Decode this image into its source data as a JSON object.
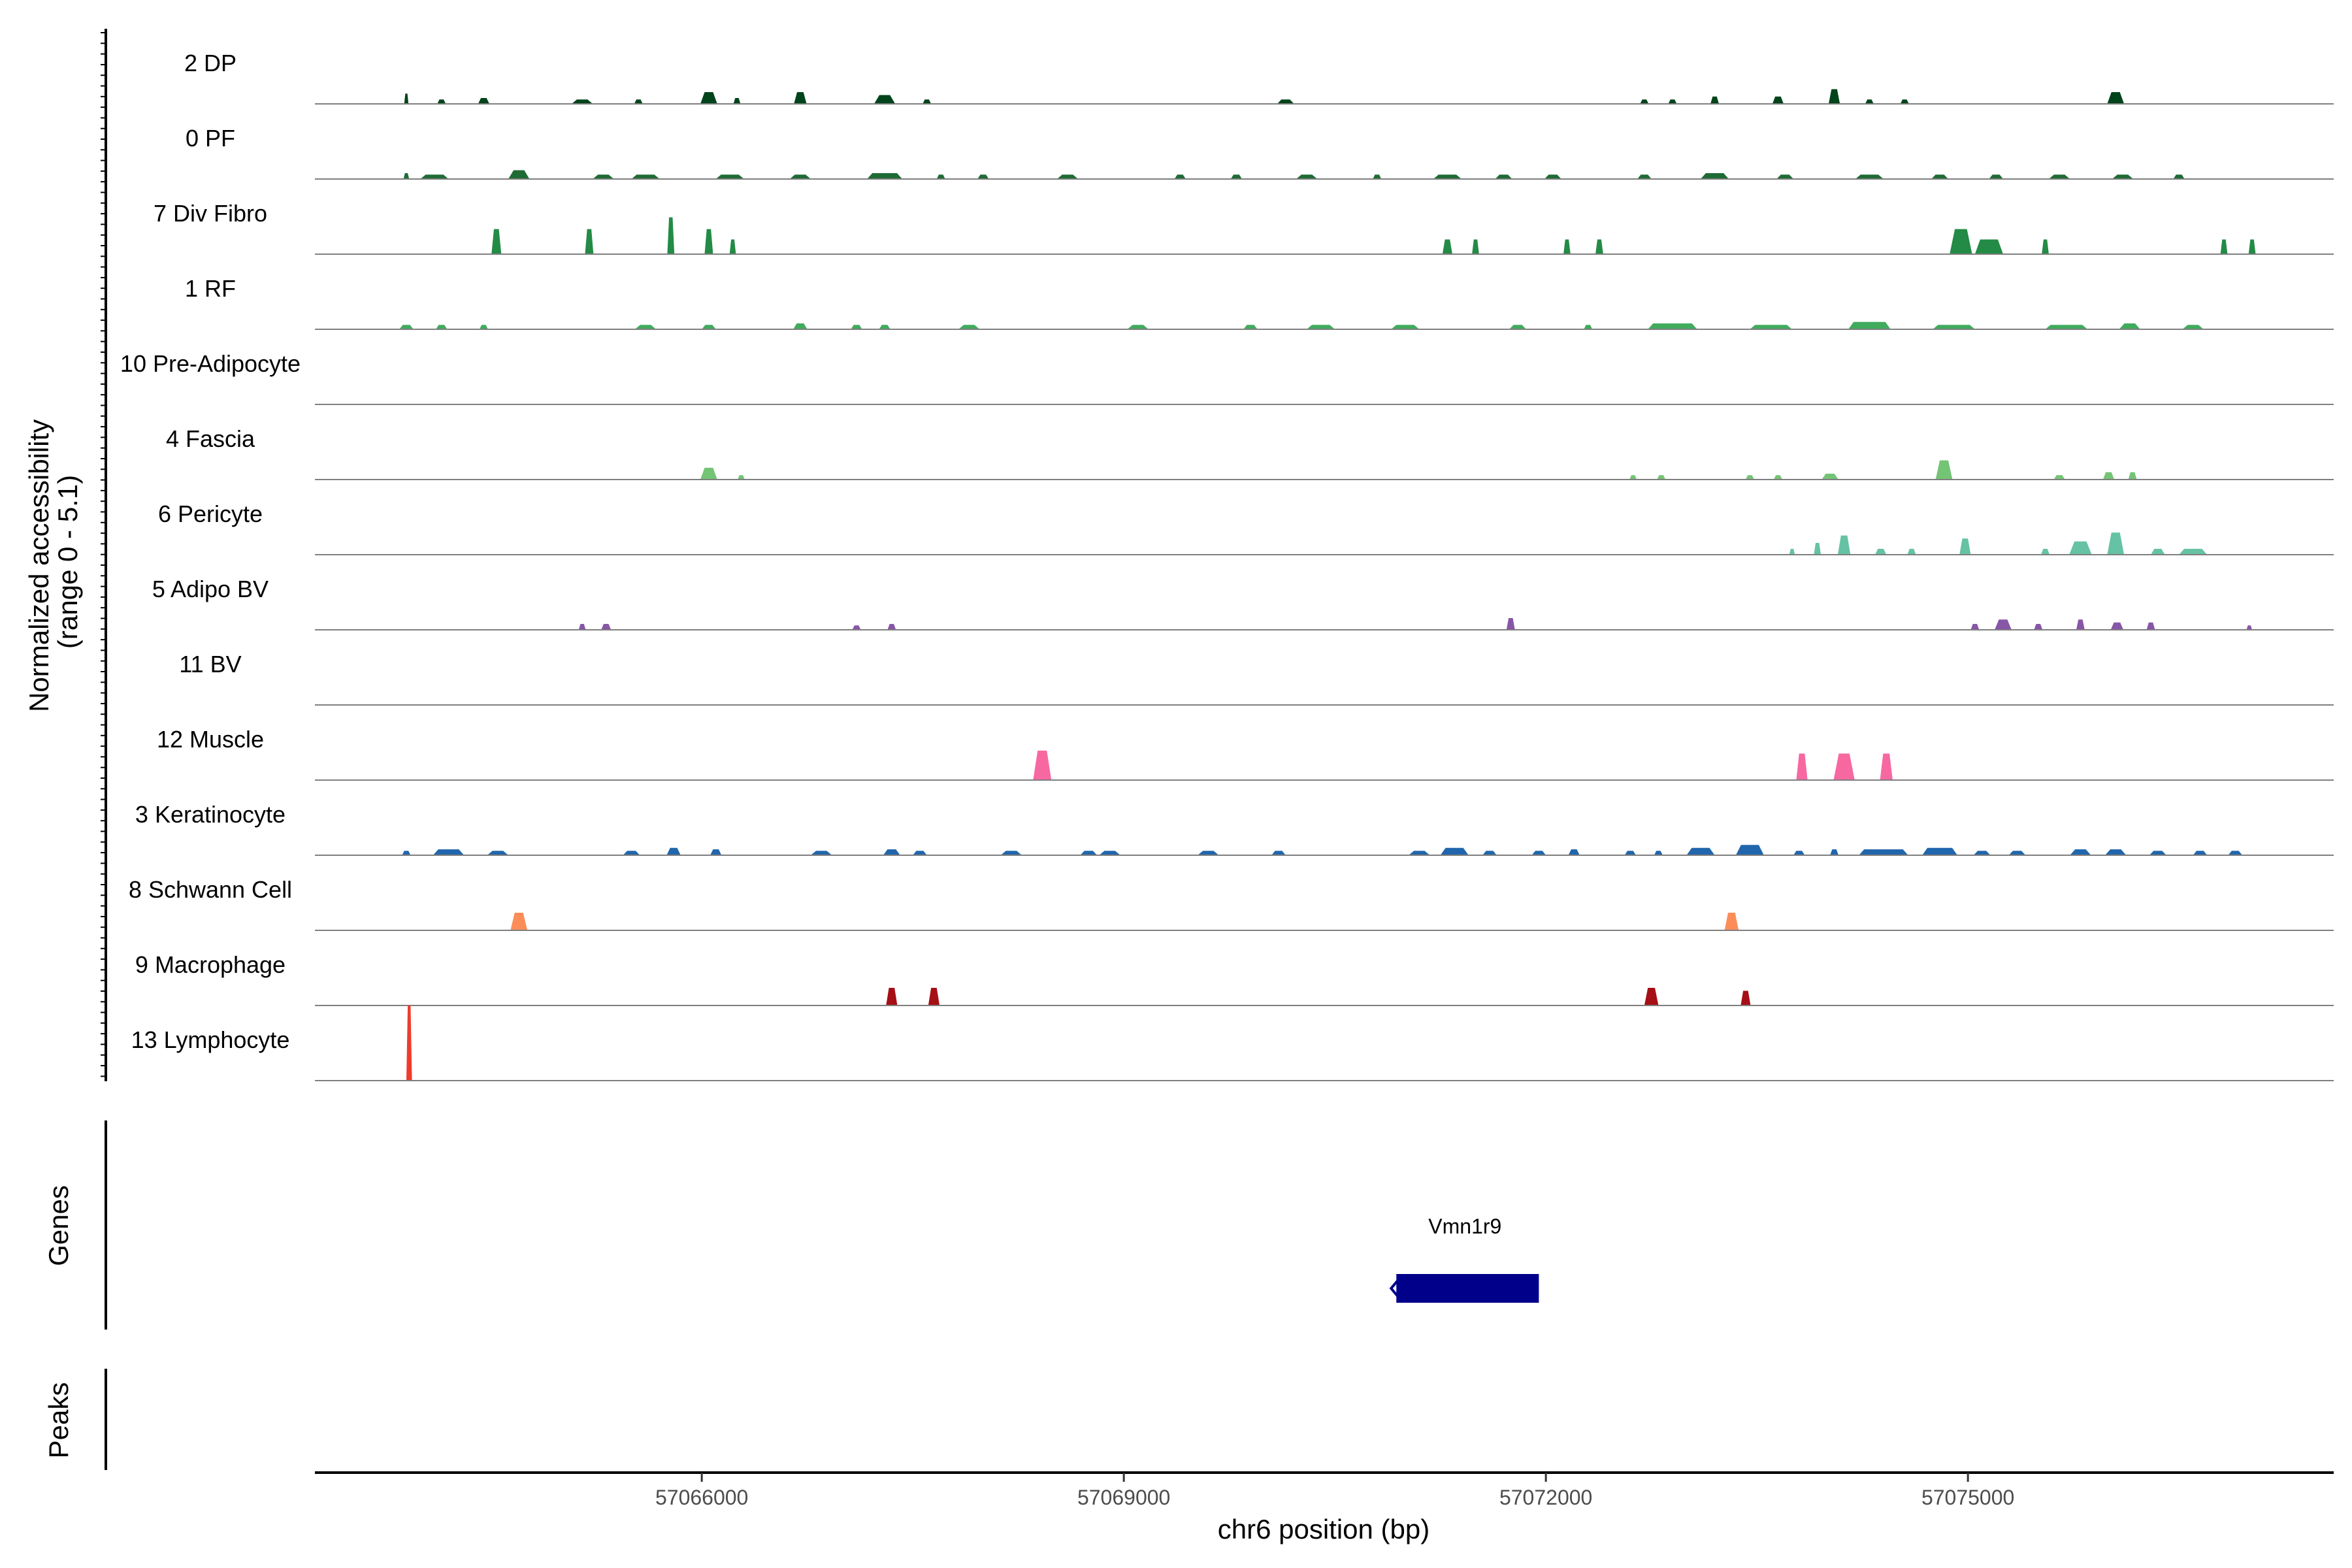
{
  "chart_data": {
    "type": "coverage-tracks",
    "xlabel": "chr6 position (bp)",
    "ylabel_line1": "Normalized accessibility",
    "ylabel_line2": "(range 0 - 5.1)",
    "xlim": [
      57063250,
      57077600
    ],
    "ylim": [
      0,
      5.1
    ],
    "x_ticks": [
      57066000,
      57069000,
      57072000,
      57075000
    ],
    "x_tick_labels": [
      "57066000",
      "57069000",
      "57072000",
      "57075000"
    ],
    "tracks": [
      {
        "name": "2 DP",
        "color": "#00441B",
        "peaks": [
          [
            57063900,
            0.7,
            30
          ],
          [
            57064150,
            0.3,
            60
          ],
          [
            57064450,
            0.4,
            80
          ],
          [
            57065150,
            0.3,
            150
          ],
          [
            57065550,
            0.3,
            60
          ],
          [
            57066050,
            0.8,
            120
          ],
          [
            57066250,
            0.4,
            50
          ],
          [
            57066700,
            0.8,
            90
          ],
          [
            57067300,
            0.6,
            150
          ],
          [
            57067600,
            0.3,
            60
          ],
          [
            57070150,
            0.3,
            120
          ],
          [
            57072700,
            0.3,
            60
          ],
          [
            57072900,
            0.3,
            60
          ],
          [
            57073200,
            0.5,
            60
          ],
          [
            57073650,
            0.5,
            80
          ],
          [
            57074050,
            1.0,
            80
          ],
          [
            57074300,
            0.3,
            60
          ],
          [
            57074550,
            0.3,
            60
          ],
          [
            57076050,
            0.8,
            120
          ]
        ]
      },
      {
        "name": "0 PF",
        "color": "#1F6B35",
        "peaks": [
          [
            57063900,
            0.4,
            40
          ],
          [
            57064100,
            0.3,
            200
          ],
          [
            57064700,
            0.6,
            150
          ],
          [
            57065300,
            0.3,
            150
          ],
          [
            57065600,
            0.3,
            200
          ],
          [
            57066200,
            0.3,
            200
          ],
          [
            57066700,
            0.3,
            150
          ],
          [
            57067300,
            0.4,
            250
          ],
          [
            57067700,
            0.3,
            60
          ],
          [
            57068000,
            0.3,
            80
          ],
          [
            57068600,
            0.3,
            150
          ],
          [
            57069400,
            0.3,
            80
          ],
          [
            57069800,
            0.3,
            80
          ],
          [
            57070300,
            0.3,
            150
          ],
          [
            57070800,
            0.3,
            60
          ],
          [
            57071300,
            0.3,
            200
          ],
          [
            57071700,
            0.3,
            120
          ],
          [
            57072050,
            0.3,
            120
          ],
          [
            57072700,
            0.3,
            100
          ],
          [
            57073200,
            0.4,
            200
          ],
          [
            57073700,
            0.3,
            120
          ],
          [
            57074300,
            0.3,
            200
          ],
          [
            57074800,
            0.3,
            120
          ],
          [
            57075200,
            0.3,
            100
          ],
          [
            57075650,
            0.3,
            150
          ],
          [
            57076100,
            0.3,
            150
          ],
          [
            57076500,
            0.3,
            80
          ]
        ]
      },
      {
        "name": "7 Div Fibro",
        "color": "#238B45",
        "peaks": [
          [
            57064540,
            1.7,
            70
          ],
          [
            57065200,
            1.7,
            60
          ],
          [
            57065780,
            2.5,
            50
          ],
          [
            57066050,
            1.7,
            60
          ],
          [
            57066220,
            1.0,
            45
          ],
          [
            57071300,
            1.0,
            70
          ],
          [
            57071500,
            1.0,
            50
          ],
          [
            57072150,
            1.0,
            50
          ],
          [
            57072380,
            1.0,
            55
          ],
          [
            57074950,
            1.7,
            160
          ],
          [
            57075150,
            1.0,
            200
          ],
          [
            57075550,
            1.0,
            50
          ],
          [
            57076820,
            1.0,
            50
          ],
          [
            57077020,
            1.0,
            50
          ]
        ]
      },
      {
        "name": "1 RF",
        "color": "#41AB5D",
        "peaks": [
          [
            57063900,
            0.3,
            100
          ],
          [
            57064150,
            0.3,
            80
          ],
          [
            57064450,
            0.3,
            60
          ],
          [
            57065600,
            0.3,
            150
          ],
          [
            57066050,
            0.3,
            100
          ],
          [
            57066700,
            0.4,
            100
          ],
          [
            57067100,
            0.3,
            80
          ],
          [
            57067300,
            0.3,
            80
          ],
          [
            57067900,
            0.3,
            150
          ],
          [
            57069100,
            0.3,
            150
          ],
          [
            57069900,
            0.3,
            100
          ],
          [
            57070400,
            0.3,
            200
          ],
          [
            57071000,
            0.3,
            200
          ],
          [
            57071800,
            0.3,
            120
          ],
          [
            57072300,
            0.3,
            60
          ],
          [
            57072900,
            0.4,
            350
          ],
          [
            57073600,
            0.3,
            300
          ],
          [
            57074300,
            0.5,
            300
          ],
          [
            57074900,
            0.3,
            300
          ],
          [
            57075700,
            0.3,
            300
          ],
          [
            57076150,
            0.4,
            150
          ],
          [
            57076600,
            0.3,
            150
          ]
        ]
      },
      {
        "name": "10 Pre-Adipocyte",
        "color": "#74C476",
        "peaks": []
      },
      {
        "name": "4 Fascia",
        "color": "#74C476",
        "peaks": [
          [
            57066050,
            0.8,
            120
          ],
          [
            57066280,
            0.3,
            50
          ],
          [
            57072620,
            0.3,
            50
          ],
          [
            57072820,
            0.3,
            60
          ],
          [
            57073450,
            0.3,
            60
          ],
          [
            57073650,
            0.3,
            60
          ],
          [
            57074020,
            0.4,
            120
          ],
          [
            57074830,
            1.3,
            120
          ],
          [
            57075650,
            0.3,
            80
          ],
          [
            57076000,
            0.5,
            80
          ],
          [
            57076170,
            0.5,
            60
          ]
        ]
      },
      {
        "name": "6 Pericyte",
        "color": "#66C2A4",
        "peaks": [
          [
            57073750,
            0.4,
            40
          ],
          [
            57073930,
            0.8,
            50
          ],
          [
            57074120,
            1.3,
            90
          ],
          [
            57074380,
            0.4,
            80
          ],
          [
            57074600,
            0.4,
            60
          ],
          [
            57074980,
            1.1,
            80
          ],
          [
            57075550,
            0.4,
            60
          ],
          [
            57075800,
            0.9,
            160
          ],
          [
            57076050,
            1.5,
            120
          ],
          [
            57076350,
            0.4,
            100
          ],
          [
            57076600,
            0.4,
            200
          ]
        ]
      },
      {
        "name": "5 Adipo BV",
        "color": "#8856A7",
        "peaks": [
          [
            57065150,
            0.4,
            50
          ],
          [
            57065320,
            0.4,
            70
          ],
          [
            57067100,
            0.3,
            60
          ],
          [
            57067350,
            0.4,
            60
          ],
          [
            57071750,
            0.8,
            60
          ],
          [
            57075050,
            0.4,
            60
          ],
          [
            57075250,
            0.7,
            120
          ],
          [
            57075500,
            0.4,
            60
          ],
          [
            57075800,
            0.7,
            60
          ],
          [
            57076060,
            0.5,
            90
          ],
          [
            57076300,
            0.5,
            60
          ],
          [
            57077000,
            0.3,
            40
          ]
        ]
      },
      {
        "name": "11 BV",
        "color": "#6A51A3",
        "peaks": []
      },
      {
        "name": "12 Muscle",
        "color": "#F768A1",
        "peaks": [
          [
            57068420,
            2.0,
            130
          ],
          [
            57073820,
            1.8,
            80
          ],
          [
            57074120,
            1.8,
            150
          ],
          [
            57074420,
            1.8,
            90
          ]
        ]
      },
      {
        "name": "3 Keratinocyte",
        "color": "#2166AC",
        "peaks": [
          [
            57063900,
            0.3,
            60
          ],
          [
            57064200,
            0.4,
            220
          ],
          [
            57064550,
            0.3,
            150
          ],
          [
            57065500,
            0.3,
            120
          ],
          [
            57065800,
            0.5,
            100
          ],
          [
            57066100,
            0.4,
            80
          ],
          [
            57066850,
            0.3,
            150
          ],
          [
            57067350,
            0.4,
            120
          ],
          [
            57067550,
            0.3,
            100
          ],
          [
            57068200,
            0.3,
            150
          ],
          [
            57068750,
            0.3,
            120
          ],
          [
            57068900,
            0.3,
            150
          ],
          [
            57069600,
            0.3,
            150
          ],
          [
            57070100,
            0.3,
            100
          ],
          [
            57071100,
            0.3,
            150
          ],
          [
            57071350,
            0.5,
            200
          ],
          [
            57071600,
            0.3,
            100
          ],
          [
            57071950,
            0.3,
            100
          ],
          [
            57072200,
            0.4,
            80
          ],
          [
            57072600,
            0.3,
            80
          ],
          [
            57072800,
            0.3,
            60
          ],
          [
            57073100,
            0.5,
            200
          ],
          [
            57073450,
            0.7,
            200
          ],
          [
            57073800,
            0.3,
            80
          ],
          [
            57074050,
            0.4,
            60
          ],
          [
            57074400,
            0.4,
            350
          ],
          [
            57074800,
            0.5,
            250
          ],
          [
            57075100,
            0.3,
            120
          ],
          [
            57075350,
            0.3,
            120
          ],
          [
            57075800,
            0.4,
            150
          ],
          [
            57076050,
            0.4,
            150
          ],
          [
            57076350,
            0.3,
            120
          ],
          [
            57076650,
            0.3,
            100
          ],
          [
            57076900,
            0.3,
            100
          ]
        ]
      },
      {
        "name": "8 Schwann Cell",
        "color": "#FC8D59",
        "peaks": [
          [
            57064700,
            1.2,
            120
          ],
          [
            57073320,
            1.2,
            100
          ]
        ]
      },
      {
        "name": "9 Macrophage",
        "color": "#A50F15",
        "peaks": [
          [
            57067350,
            1.2,
            80
          ],
          [
            57067650,
            1.2,
            80
          ],
          [
            57072750,
            1.2,
            100
          ],
          [
            57073420,
            1.0,
            70
          ]
        ]
      },
      {
        "name": "13 Lymphocyte",
        "color": "#EF3B2C",
        "peaks": [
          [
            57063920,
            5.1,
            40
          ]
        ]
      }
    ],
    "gene_track_title": "Genes",
    "genes": [
      {
        "name": "Vmn1r9",
        "start": 57070900,
        "end": 57071950,
        "strand": "-",
        "color": "#00008B"
      }
    ],
    "peak_track_title": "Peaks",
    "peaks_regions": []
  }
}
